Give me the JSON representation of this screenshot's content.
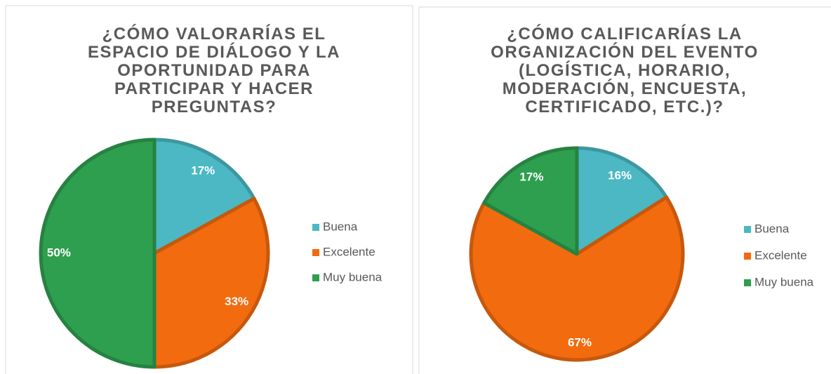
{
  "chart_data": [
    {
      "type": "pie",
      "title": "¿CÓMO VALORARÍAS EL ESPACIO DE DIÁLOGO Y LA OPORTUNIDAD PARA PARTICIPAR Y HACER PREGUNTAS?",
      "categories": [
        "Buena",
        "Excelente",
        "Muy buena"
      ],
      "values": [
        17,
        33,
        50
      ],
      "value_labels": [
        "17%",
        "33%",
        "50%"
      ],
      "colors": [
        "#4bb8c4",
        "#f26b0f",
        "#2e9e4f"
      ],
      "legend": "right"
    },
    {
      "type": "pie",
      "title": "¿CÓMO CALIFICARÍAS LA ORGANIZACIÓN DEL EVENTO (LOGÍSTICA, HORARIO, MODERACIÓN, ENCUESTA, CERTIFICADO, ETC.)?",
      "categories": [
        "Buena",
        "Excelente",
        "Muy buena"
      ],
      "values": [
        16,
        67,
        17
      ],
      "value_labels": [
        "16%",
        "67%",
        "17%"
      ],
      "colors": [
        "#4bb8c4",
        "#f26b0f",
        "#2e9e4f"
      ],
      "legend": "right"
    }
  ]
}
